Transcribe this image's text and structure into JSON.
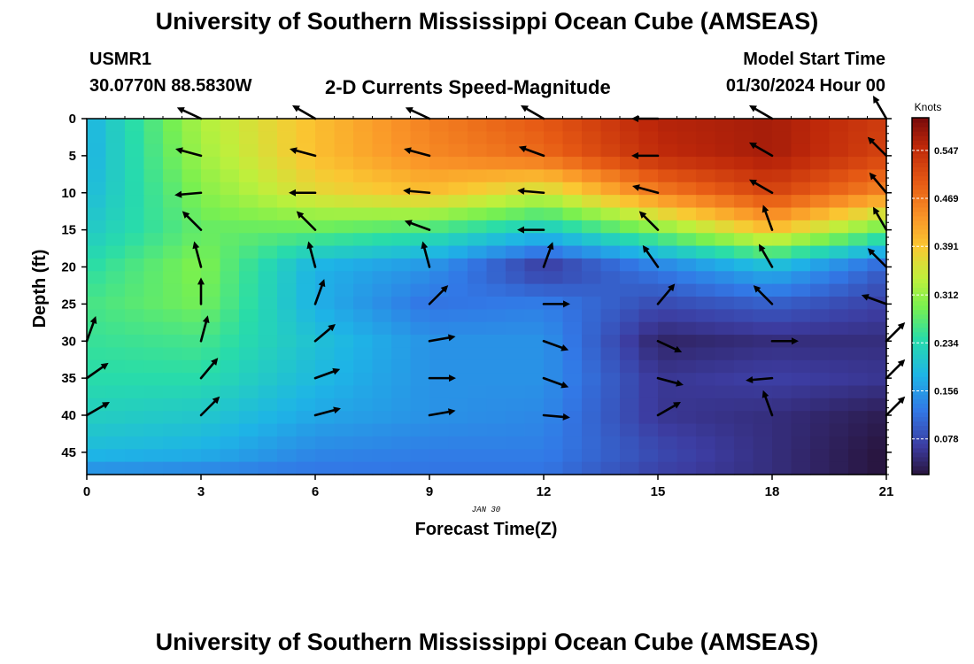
{
  "header": {
    "title": "University of Southern Mississippi Ocean Cube (AMSEAS)",
    "station": "USMR1",
    "location": "30.0770N  88.5830W",
    "subtitle": "2-D Currents Speed-Magnitude",
    "model_label": "Model Start Time",
    "model_time": "01/30/2024 Hour 00"
  },
  "footer": {
    "title": "University of Southern Mississippi Ocean Cube (AMSEAS)"
  },
  "chart_data": {
    "type": "heatmap",
    "xlabel": "Forecast Time(Z)",
    "ylabel": "Depth (ft)",
    "date_label": "JAN 30",
    "xlim": [
      0,
      21
    ],
    "ylim": [
      48,
      0
    ],
    "x_ticks": [
      0,
      3,
      6,
      9,
      12,
      15,
      18,
      21
    ],
    "y_ticks": [
      0,
      5,
      10,
      15,
      20,
      25,
      30,
      35,
      40,
      45
    ],
    "colorbar": {
      "title": "Knots",
      "min": 0.02,
      "max": 0.6,
      "ticks": [
        0.078,
        0.156,
        0.234,
        0.312,
        0.391,
        0.469,
        0.547
      ],
      "tick_labels": [
        "0.078",
        "0.156",
        "0.234",
        "0.312",
        "0.391",
        "0.469",
        "0.547"
      ]
    },
    "speed_field_knots": {
      "times_h": [
        0,
        3,
        6,
        9,
        12,
        15,
        18,
        21
      ],
      "depths_ft": [
        0,
        5,
        10,
        15,
        20,
        25,
        30,
        35,
        40,
        45,
        48
      ],
      "values": [
        [
          0.18,
          0.33,
          0.4,
          0.46,
          0.5,
          0.56,
          0.57,
          0.53
        ],
        [
          0.18,
          0.32,
          0.4,
          0.45,
          0.48,
          0.55,
          0.57,
          0.52
        ],
        [
          0.19,
          0.3,
          0.37,
          0.4,
          0.35,
          0.46,
          0.52,
          0.45
        ],
        [
          0.21,
          0.28,
          0.28,
          0.26,
          0.21,
          0.3,
          0.4,
          0.28
        ],
        [
          0.24,
          0.3,
          0.18,
          0.15,
          0.06,
          0.13,
          0.19,
          0.1
        ],
        [
          0.26,
          0.29,
          0.18,
          0.12,
          0.13,
          0.08,
          0.1,
          0.07
        ],
        [
          0.25,
          0.26,
          0.2,
          0.15,
          0.15,
          0.04,
          0.05,
          0.05
        ],
        [
          0.24,
          0.24,
          0.19,
          0.15,
          0.15,
          0.06,
          0.07,
          0.06
        ],
        [
          0.22,
          0.21,
          0.17,
          0.15,
          0.14,
          0.06,
          0.05,
          0.03
        ],
        [
          0.19,
          0.18,
          0.14,
          0.13,
          0.13,
          0.08,
          0.05,
          0.02
        ],
        [
          0.14,
          0.13,
          0.12,
          0.12,
          0.12,
          0.07,
          0.05,
          0.02
        ]
      ]
    },
    "current_vectors": {
      "direction_convention": "degrees clockwise from north, direction the current flows toward",
      "times_h": [
        0,
        3,
        6,
        9,
        12,
        15,
        18,
        21
      ],
      "depths_ft": [
        0,
        5,
        10,
        15,
        20,
        25,
        30,
        35,
        40
      ],
      "directions_deg": [
        [
          null,
          295,
          300,
          295,
          300,
          270,
          300,
          330
        ],
        [
          null,
          285,
          285,
          285,
          290,
          270,
          300,
          315
        ],
        [
          null,
          265,
          270,
          275,
          275,
          285,
          300,
          320
        ],
        [
          null,
          315,
          315,
          290,
          270,
          315,
          340,
          330
        ],
        [
          null,
          345,
          345,
          345,
          20,
          325,
          330,
          315
        ],
        [
          null,
          360,
          20,
          45,
          90,
          40,
          315,
          290
        ],
        [
          20,
          15,
          50,
          80,
          110,
          115,
          90,
          45
        ],
        [
          55,
          40,
          70,
          90,
          110,
          105,
          265,
          45
        ],
        [
          60,
          45,
          75,
          80,
          95,
          60,
          340,
          45
        ]
      ]
    }
  }
}
